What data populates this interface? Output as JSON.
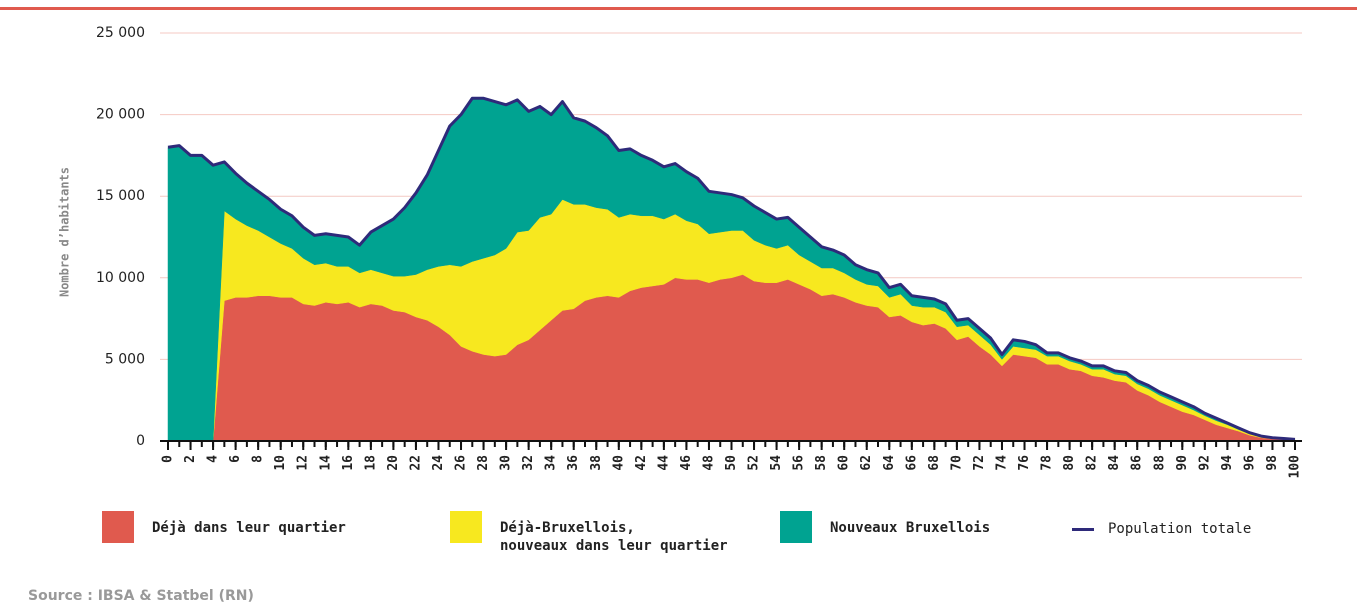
{
  "chart_data": {
    "type": "stacked_area",
    "ylabel": "Nombre d’habitants",
    "source": "Source : IBSA & Statbel (RN)",
    "x": [
      0,
      1,
      2,
      3,
      4,
      5,
      6,
      7,
      8,
      9,
      10,
      11,
      12,
      13,
      14,
      15,
      16,
      17,
      18,
      19,
      20,
      21,
      22,
      23,
      24,
      25,
      26,
      27,
      28,
      29,
      30,
      31,
      32,
      33,
      34,
      35,
      36,
      37,
      38,
      39,
      40,
      41,
      42,
      43,
      44,
      45,
      46,
      47,
      48,
      49,
      50,
      51,
      52,
      53,
      54,
      55,
      56,
      57,
      58,
      59,
      60,
      61,
      62,
      63,
      64,
      65,
      66,
      67,
      68,
      69,
      70,
      71,
      72,
      73,
      74,
      75,
      76,
      77,
      78,
      79,
      80,
      81,
      82,
      83,
      84,
      85,
      86,
      87,
      88,
      89,
      90,
      91,
      92,
      93,
      94,
      95,
      96,
      97,
      98,
      99,
      100
    ],
    "xlim": [
      0,
      100
    ],
    "xticks": [
      0,
      2,
      4,
      6,
      8,
      10,
      12,
      14,
      16,
      18,
      20,
      22,
      24,
      26,
      28,
      30,
      32,
      34,
      36,
      38,
      40,
      42,
      44,
      46,
      48,
      50,
      52,
      54,
      56,
      58,
      60,
      62,
      64,
      66,
      68,
      70,
      72,
      74,
      76,
      78,
      80,
      82,
      84,
      86,
      88,
      90,
      92,
      94,
      96,
      98,
      100
    ],
    "ylim": [
      0,
      25000
    ],
    "yticks": [
      {
        "value": 0,
        "label": "0"
      },
      {
        "value": 5000,
        "label": "5 000"
      },
      {
        "value": 10000,
        "label": "10 000"
      },
      {
        "value": 15000,
        "label": "15 000"
      },
      {
        "value": 20000,
        "label": "20 000"
      },
      {
        "value": 25000,
        "label": "25 000"
      }
    ],
    "grid": true,
    "series": [
      {
        "name": "Déjà dans leur quartier",
        "color": "#e05a4e",
        "values": [
          0,
          0,
          0,
          0,
          0,
          8600,
          8800,
          8800,
          8900,
          8900,
          8800,
          8800,
          8400,
          8300,
          8500,
          8400,
          8500,
          8200,
          8400,
          8300,
          8000,
          7900,
          7600,
          7400,
          7000,
          6500,
          5800,
          5500,
          5300,
          5200,
          5300,
          5900,
          6200,
          6800,
          7400,
          8000,
          8100,
          8600,
          8800,
          8900,
          8800,
          9200,
          9400,
          9500,
          9600,
          10000,
          9900,
          9900,
          9700,
          9900,
          10000,
          10200,
          9800,
          9700,
          9700,
          9900,
          9600,
          9300,
          8900,
          9000,
          8800,
          8500,
          8300,
          8200,
          7600,
          7700,
          7300,
          7100,
          7200,
          6900,
          6200,
          6400,
          5800,
          5300,
          4600,
          5300,
          5200,
          5100,
          4700,
          4700,
          4400,
          4300,
          4000,
          3900,
          3700,
          3600,
          3100,
          2800,
          2400,
          2100,
          1800,
          1600,
          1300,
          1000,
          800,
          600,
          350,
          200,
          130,
          100,
          70
        ]
      },
      {
        "name": "Déjà-Bruxellois,\nnouveaux dans leur quartier",
        "color": "#f7e81f",
        "values": [
          0,
          0,
          0,
          0,
          0,
          5500,
          4800,
          4400,
          4000,
          3600,
          3300,
          3000,
          2800,
          2500,
          2400,
          2300,
          2200,
          2100,
          2100,
          2000,
          2100,
          2200,
          2600,
          3100,
          3700,
          4300,
          4900,
          5500,
          5900,
          6200,
          6500,
          6900,
          6700,
          6900,
          6500,
          6800,
          6400,
          5900,
          5500,
          5300,
          4900,
          4700,
          4400,
          4300,
          4000,
          3900,
          3600,
          3400,
          3000,
          2900,
          2900,
          2700,
          2500,
          2300,
          2100,
          2100,
          1800,
          1700,
          1700,
          1600,
          1500,
          1400,
          1300,
          1300,
          1200,
          1300,
          1000,
          1100,
          1000,
          1000,
          800,
          700,
          700,
          600,
          400,
          500,
          500,
          500,
          500,
          500,
          500,
          400,
          400,
          500,
          400,
          400,
          400,
          400,
          400,
          400,
          400,
          300,
          250,
          250,
          200,
          100,
          100,
          60,
          50,
          30,
          20
        ]
      },
      {
        "name": "Nouveaux Bruxellois",
        "color": "#00a391",
        "values": [
          18000,
          18100,
          17500,
          17500,
          16900,
          3000,
          2800,
          2600,
          2400,
          2300,
          2100,
          2000,
          1900,
          1800,
          1800,
          1900,
          1800,
          1700,
          2300,
          2900,
          3500,
          4200,
          5000,
          5800,
          7100,
          8500,
          9300,
          10000,
          9800,
          9400,
          8800,
          8100,
          7300,
          6800,
          6100,
          6000,
          5300,
          5100,
          4900,
          4500,
          4100,
          4000,
          3700,
          3400,
          3200,
          3100,
          3000,
          2800,
          2600,
          2400,
          2200,
          2000,
          2100,
          2000,
          1800,
          1700,
          1700,
          1500,
          1300,
          1100,
          1100,
          900,
          900,
          800,
          600,
          600,
          600,
          600,
          500,
          500,
          400,
          400,
          400,
          400,
          300,
          400,
          400,
          300,
          200,
          200,
          200,
          200,
          200,
          200,
          200,
          200,
          200,
          200,
          200,
          200,
          200,
          200,
          150,
          150,
          100,
          100,
          50,
          40,
          20,
          20,
          10
        ]
      },
      {
        "name": "Population totale",
        "color": "#2e2a7a",
        "type": "line",
        "values": [
          18000,
          18100,
          17500,
          17500,
          16900,
          17100,
          16400,
          15800,
          15300,
          14800,
          14200,
          13800,
          13100,
          12600,
          12700,
          12600,
          12500,
          12000,
          12800,
          13200,
          13600,
          14300,
          15200,
          16300,
          17800,
          19300,
          20000,
          21000,
          21000,
          20800,
          20600,
          20900,
          20200,
          20500,
          20000,
          20800,
          19800,
          19600,
          19200,
          18700,
          17800,
          17900,
          17500,
          17200,
          16800,
          17000,
          16500,
          16100,
          15300,
          15200,
          15100,
          14900,
          14400,
          14000,
          13600,
          13700,
          13100,
          12500,
          11900,
          11700,
          11400,
          10800,
          10500,
          10300,
          9400,
          9600,
          8900,
          8800,
          8700,
          8400,
          7400,
          7500,
          6900,
          6300,
          5300,
          6200,
          6100,
          5900,
          5400,
          5400,
          5100,
          4900,
          4600,
          4600,
          4300,
          4200,
          3700,
          3400,
          3000,
          2700,
          2400,
          2100,
          1700,
          1400,
          1100,
          800,
          500,
          300,
          200,
          150,
          100
        ]
      }
    ]
  }
}
